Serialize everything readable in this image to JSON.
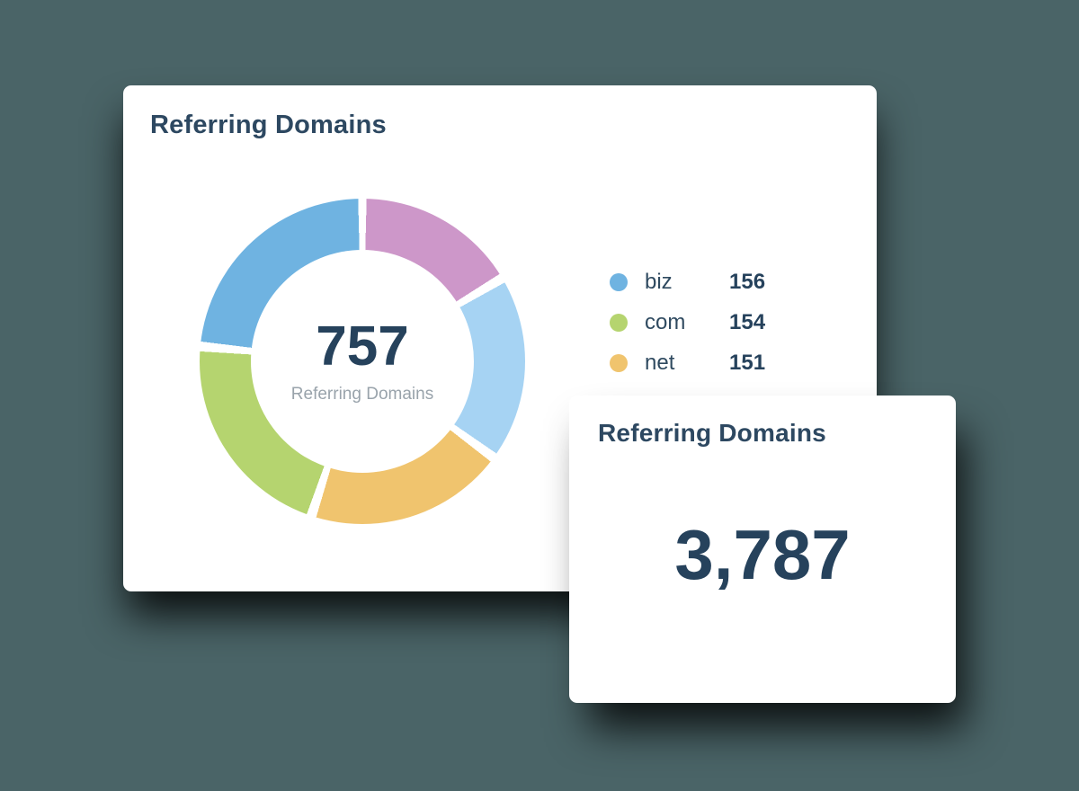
{
  "colors": {
    "background": "#4a6467",
    "card": "#ffffff",
    "heading": "#2d4861",
    "number": "#26425c",
    "muted": "#99a3ab"
  },
  "main_card": {
    "title": "Referring Domains"
  },
  "overlay_card": {
    "title": "Referring Domains",
    "value": "3,787"
  },
  "chart_data": {
    "type": "pie",
    "variant": "donut",
    "title": "Referring Domains",
    "center_total": "757",
    "center_label": "Referring Domains",
    "legend_position": "right",
    "legend": [
      {
        "label": "biz",
        "value": "156",
        "color": "#6fb3e1"
      },
      {
        "label": "com",
        "value": "154",
        "color": "#b5d46f"
      },
      {
        "label": "net",
        "value": "151",
        "color": "#f0c46e"
      }
    ],
    "segments": [
      {
        "name": "pink-segment",
        "color": "#cd97c9",
        "start_deg": 1.5,
        "end_deg": 57.5
      },
      {
        "name": "light-blue-segment",
        "color": "#a6d3f3",
        "start_deg": 61,
        "end_deg": 124.5
      },
      {
        "name": "net-orange-segment",
        "color": "#f0c46e",
        "start_deg": 128,
        "end_deg": 196.5
      },
      {
        "name": "com-green-segment",
        "color": "#b5d46f",
        "start_deg": 200,
        "end_deg": 273.5
      },
      {
        "name": "biz-blue-segment",
        "color": "#6fb3e1",
        "start_deg": 277,
        "end_deg": 358.5
      }
    ],
    "gap_color": "#ffffff"
  }
}
